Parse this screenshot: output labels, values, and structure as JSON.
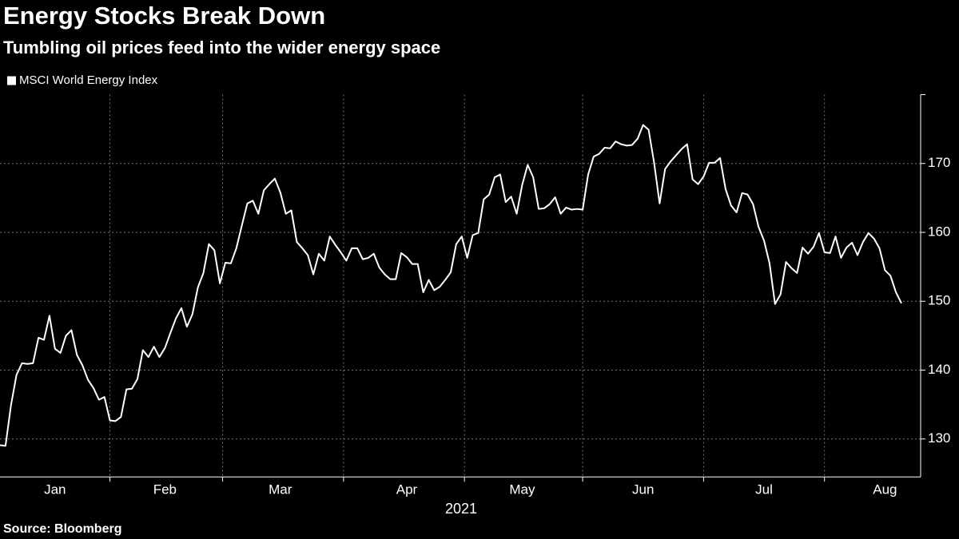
{
  "chart_data": {
    "type": "line",
    "title": "Energy Stocks Break Down",
    "subtitle": "Tumbling oil prices feed into the wider energy space",
    "xlabel": "2021",
    "source": "Source: Bloomberg",
    "categories": [
      null,
      null,
      null,
      null,
      null,
      null,
      null,
      null,
      null,
      null,
      "Jan",
      null,
      null,
      null,
      null,
      null,
      null,
      null,
      null,
      null,
      null,
      null,
      null,
      null,
      null,
      null,
      null,
      null,
      null,
      null,
      "Feb",
      null,
      null,
      null,
      null,
      null,
      null,
      null,
      null,
      null,
      null,
      null,
      null,
      null,
      null,
      null,
      null,
      null,
      null,
      null,
      null,
      "Mar",
      null,
      null,
      null,
      null,
      null,
      null,
      null,
      null,
      null,
      null,
      null,
      null,
      null,
      null,
      null,
      null,
      null,
      null,
      null,
      null,
      null,
      null,
      "Apr",
      null,
      null,
      null,
      null,
      null,
      null,
      null,
      null,
      null,
      null,
      null,
      null,
      null,
      null,
      null,
      null,
      null,
      null,
      null,
      null,
      "May",
      null,
      null,
      null,
      null,
      null,
      null,
      null,
      null,
      null,
      null,
      null,
      null,
      null,
      null,
      null,
      null,
      null,
      null,
      null,
      null,
      null,
      "Jun",
      null,
      null,
      null,
      null,
      null,
      null,
      null,
      null,
      null,
      null,
      null,
      null,
      null,
      null,
      null,
      null,
      null,
      null,
      null,
      null,
      null,
      "Jul",
      null,
      null,
      null,
      null,
      null,
      null,
      null,
      null,
      null,
      null,
      null,
      null,
      null,
      null,
      null,
      null,
      null,
      null,
      null,
      null,
      null,
      "Aug",
      null,
      null,
      null
    ],
    "series": [
      {
        "name": "MSCI World Energy Index",
        "color": "#ffffff",
        "values": [
          129.1,
          129.0,
          134.9,
          139.3,
          141.0,
          140.9,
          141.0,
          144.7,
          144.4,
          147.9,
          143.1,
          142.5,
          145.0,
          145.8,
          142.2,
          140.7,
          138.6,
          137.4,
          135.7,
          136.1,
          132.7,
          132.6,
          133.2,
          137.2,
          137.3,
          138.7,
          142.9,
          141.9,
          143.4,
          141.9,
          143.2,
          145.4,
          147.5,
          149.0,
          146.3,
          148.1,
          152.0,
          154.1,
          158.3,
          157.4,
          152.6,
          155.6,
          155.5,
          157.7,
          161.0,
          164.2,
          164.6,
          162.7,
          166.1,
          167.0,
          167.8,
          165.8,
          162.7,
          163.2,
          158.6,
          157.7,
          156.7,
          153.9,
          156.9,
          155.9,
          159.4,
          158.2,
          157.1,
          155.9,
          157.7,
          157.7,
          156.1,
          156.3,
          156.9,
          154.9,
          153.9,
          153.2,
          153.2,
          157.0,
          156.4,
          155.4,
          155.4,
          151.3,
          153.1,
          151.6,
          152.1,
          153.1,
          154.2,
          158.3,
          159.4,
          156.3,
          159.6,
          159.9,
          164.8,
          165.5,
          168.0,
          168.4,
          164.4,
          165.2,
          162.7,
          166.9,
          169.8,
          168.0,
          163.4,
          163.5,
          164.1,
          165.1,
          162.7,
          163.6,
          163.3,
          163.4,
          163.3,
          168.4,
          171.0,
          171.4,
          172.3,
          172.2,
          173.2,
          172.8,
          172.6,
          172.7,
          173.6,
          175.6,
          174.9,
          170.1,
          164.2,
          169.2,
          170.3,
          171.2,
          172.1,
          172.8,
          167.7,
          167.0,
          168.1,
          170.1,
          170.1,
          170.8,
          166.3,
          163.9,
          162.9,
          165.7,
          165.5,
          164.1,
          160.8,
          158.8,
          155.5,
          149.6,
          151.0,
          155.7,
          154.8,
          154.1,
          157.8,
          156.9,
          157.9,
          159.9,
          157.1,
          157.0,
          159.4,
          156.3,
          157.8,
          158.5,
          156.7,
          158.6,
          159.9,
          159.1,
          157.7,
          154.5,
          153.7,
          151.3,
          149.7
        ]
      }
    ],
    "ylim": [
      124.5,
      180
    ],
    "yticks": [
      130,
      140,
      150,
      160,
      170
    ],
    "grid": true,
    "legend": "top-left"
  }
}
